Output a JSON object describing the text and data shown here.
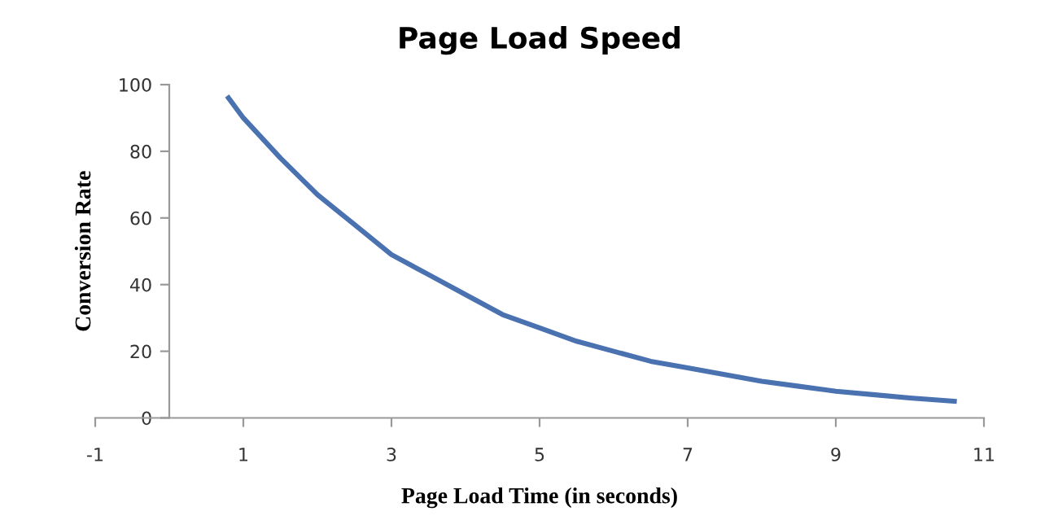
{
  "chart_data": {
    "type": "line",
    "title": "Page Load Speed",
    "xlabel": "Page Load Time (in seconds)",
    "ylabel": "Conversion Rate",
    "x": [
      0.8,
      1,
      1.5,
      2,
      2.5,
      3,
      3.5,
      4,
      4.5,
      5,
      5.5,
      6,
      6.5,
      7,
      7.5,
      8,
      8.5,
      9,
      9.5,
      10,
      10.6
    ],
    "series": [
      {
        "color": "#4a72b0",
        "values": [
          96,
          90,
          78,
          67,
          58,
          49,
          43,
          37,
          31,
          27,
          23,
          20,
          17,
          15,
          13,
          11,
          9.5,
          8,
          7,
          6,
          5
        ]
      }
    ],
    "xlim": [
      -1,
      11
    ],
    "xticks": [
      -1,
      1,
      3,
      5,
      7,
      9,
      11
    ],
    "ylim": [
      0,
      100
    ],
    "yticks": [
      0,
      20,
      40,
      60,
      80,
      100
    ],
    "grid": false,
    "legend": false,
    "marker": "none",
    "line_style": "solid"
  }
}
